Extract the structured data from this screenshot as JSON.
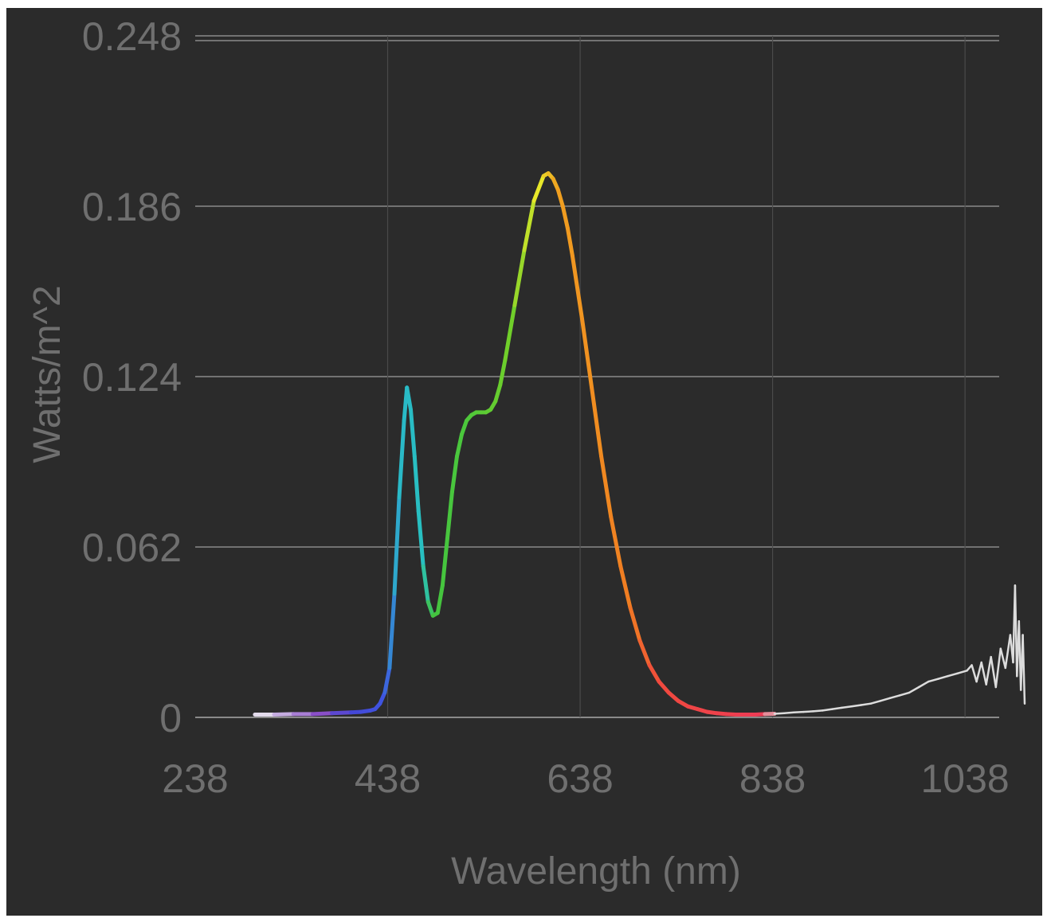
{
  "chart_data": {
    "type": "line",
    "title": "",
    "xlabel": "Wavelength (nm)",
    "ylabel": "Watts/m^2",
    "xlim": [
      238,
      1100
    ],
    "ylim": [
      0,
      0.248
    ],
    "x_ticks": [
      "238",
      "438",
      "638",
      "838",
      "1038"
    ],
    "y_ticks": [
      "0",
      "0.062",
      "0.124",
      "0.186",
      "0.248"
    ],
    "grid": true,
    "legend": "none",
    "background_color": "#2b2b2b",
    "grid_color": "#8a8a8a",
    "text_color": "#6f6f6f",
    "series": [
      {
        "x": [
          300,
          320,
          340,
          360,
          380,
          400,
          410,
          420,
          425,
          430,
          435,
          440,
          445,
          450,
          455,
          458,
          462,
          466,
          470,
          475,
          480,
          485,
          490,
          495,
          500,
          505,
          510,
          515,
          520,
          525,
          530,
          535,
          540,
          545,
          550,
          555,
          560,
          570,
          580,
          590,
          600,
          605,
          610,
          615,
          620,
          625,
          630,
          640,
          650,
          660,
          670,
          680,
          690,
          700,
          710,
          720,
          730,
          740,
          750,
          760,
          770,
          780,
          790,
          800,
          810,
          820,
          830,
          840,
          850,
          860,
          870,
          880,
          890,
          900,
          910,
          920,
          930,
          940,
          950,
          960,
          970,
          980,
          990,
          1000,
          1010,
          1020,
          1030,
          1040,
          1045,
          1050,
          1055,
          1060,
          1065,
          1070,
          1075,
          1080,
          1085,
          1088,
          1090,
          1092,
          1094,
          1096,
          1098,
          1100
        ],
        "y": [
          0.001,
          0.001,
          0.0012,
          0.0012,
          0.0015,
          0.0018,
          0.002,
          0.0025,
          0.003,
          0.005,
          0.009,
          0.018,
          0.045,
          0.08,
          0.108,
          0.12,
          0.112,
          0.095,
          0.075,
          0.055,
          0.042,
          0.037,
          0.038,
          0.048,
          0.065,
          0.082,
          0.095,
          0.103,
          0.108,
          0.11,
          0.111,
          0.111,
          0.111,
          0.112,
          0.115,
          0.121,
          0.13,
          0.15,
          0.17,
          0.188,
          0.197,
          0.198,
          0.196,
          0.192,
          0.186,
          0.178,
          0.168,
          0.145,
          0.12,
          0.095,
          0.073,
          0.055,
          0.04,
          0.028,
          0.019,
          0.013,
          0.009,
          0.006,
          0.004,
          0.003,
          0.002,
          0.0015,
          0.0012,
          0.001,
          0.001,
          0.001,
          0.0012,
          0.0013,
          0.0015,
          0.0018,
          0.002,
          0.0022,
          0.0025,
          0.003,
          0.0035,
          0.004,
          0.0045,
          0.005,
          0.006,
          0.007,
          0.008,
          0.009,
          0.011,
          0.013,
          0.014,
          0.015,
          0.016,
          0.017,
          0.019,
          0.013,
          0.02,
          0.012,
          0.022,
          0.011,
          0.025,
          0.018,
          0.03,
          0.02,
          0.048,
          0.015,
          0.035,
          0.01,
          0.03,
          0.005
        ]
      }
    ],
    "color_stops": [
      {
        "x": 300,
        "color": "#f2f2f2"
      },
      {
        "x": 370,
        "color": "#8a4fc8"
      },
      {
        "x": 400,
        "color": "#4545d6"
      },
      {
        "x": 435,
        "color": "#3f55e0"
      },
      {
        "x": 450,
        "color": "#2ab8c8"
      },
      {
        "x": 475,
        "color": "#28c0c0"
      },
      {
        "x": 485,
        "color": "#43c33f"
      },
      {
        "x": 520,
        "color": "#4cc83c"
      },
      {
        "x": 565,
        "color": "#70cf2a"
      },
      {
        "x": 595,
        "color": "#e8e82a"
      },
      {
        "x": 615,
        "color": "#f0a020"
      },
      {
        "x": 690,
        "color": "#f07c22"
      },
      {
        "x": 720,
        "color": "#f04a3e"
      },
      {
        "x": 830,
        "color": "#ee3b56"
      },
      {
        "x": 840,
        "color": "#dcdcdc"
      },
      {
        "x": 1100,
        "color": "#dcdcdc"
      }
    ]
  }
}
